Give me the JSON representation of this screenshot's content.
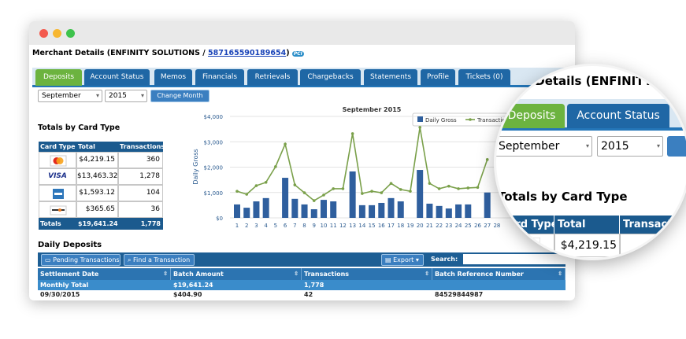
{
  "merchant": {
    "label": "Merchant Details (ENFINITY SOLUTIONS / ",
    "id": "587165590189654",
    "suffix": ")",
    "badge": "PCI"
  },
  "tabs": [
    "Deposits",
    "Account Status",
    "Memos",
    "Financials",
    "Retrievals",
    "Chargebacks",
    "Statements",
    "Profile",
    "Tickets (0)"
  ],
  "controls": {
    "month": "September",
    "year": "2015",
    "button": "Change Month"
  },
  "card_totals": {
    "title": "Totals by Card Type",
    "columns": [
      "Card Type",
      "Total",
      "Transactions"
    ],
    "rows": [
      {
        "total": "$4,219.15",
        "transactions": "360"
      },
      {
        "logo": "VISA",
        "total": "$13,463.32",
        "transactions": "1,278"
      },
      {
        "total": "$1,593.12",
        "transactions": "104"
      },
      {
        "total": "$365.65",
        "transactions": "36"
      }
    ],
    "totals": {
      "label": "Totals",
      "total": "$19,641.24",
      "transactions": "1,778"
    }
  },
  "chart_data": {
    "type": "bar",
    "title": "September 2015",
    "y_label": "Daily Gross",
    "categories": [
      1,
      2,
      3,
      4,
      5,
      6,
      7,
      8,
      9,
      10,
      11,
      12,
      13,
      14,
      15,
      16,
      17,
      18,
      19,
      20,
      21,
      22,
      23,
      24,
      25,
      26,
      27,
      28
    ],
    "series": [
      {
        "name": "Daily Gross",
        "type": "bar",
        "color": "#2f5f9e",
        "values": [
          530,
          400,
          650,
          780,
          null,
          1580,
          750,
          530,
          340,
          710,
          650,
          null,
          1830,
          500,
          500,
          590,
          780,
          650,
          null,
          1890,
          560,
          470,
          370,
          530,
          530,
          null,
          1000,
          null
        ]
      },
      {
        "name": "Transactions",
        "type": "line",
        "color": "#7aa04a",
        "values": [
          1050,
          930,
          1270,
          1400,
          2020,
          2910,
          1300,
          990,
          680,
          900,
          1150,
          1150,
          3320,
          960,
          1050,
          990,
          1360,
          1120,
          1050,
          3570,
          1360,
          1150,
          1250,
          1150,
          1180,
          1200,
          2300,
          null
        ]
      }
    ],
    "ylim": [
      0,
      4000
    ],
    "yticks": [
      {
        "value": 0,
        "label": "$0"
      },
      {
        "value": 1000,
        "label": "$1,000"
      },
      {
        "value": 2000,
        "label": "$2,000"
      },
      {
        "value": 3000,
        "label": "$3,000"
      },
      {
        "value": 4000,
        "label": "$4,000"
      }
    ],
    "grid": true
  },
  "daily_deposits": {
    "title": "Daily Deposits",
    "buttons": [
      "Pending Transactions",
      "Find a Transaction",
      "Export"
    ],
    "search": "Search:",
    "columns": [
      "Settlement Date",
      "Batch Amount",
      "Transactions",
      "Batch Reference Number"
    ],
    "summary": [
      "Monthly Total",
      "$19,641.24",
      "1,778"
    ],
    "rows": [
      [
        "09/30/2015",
        "$404.90",
        "42",
        "84529844987"
      ]
    ]
  }
}
